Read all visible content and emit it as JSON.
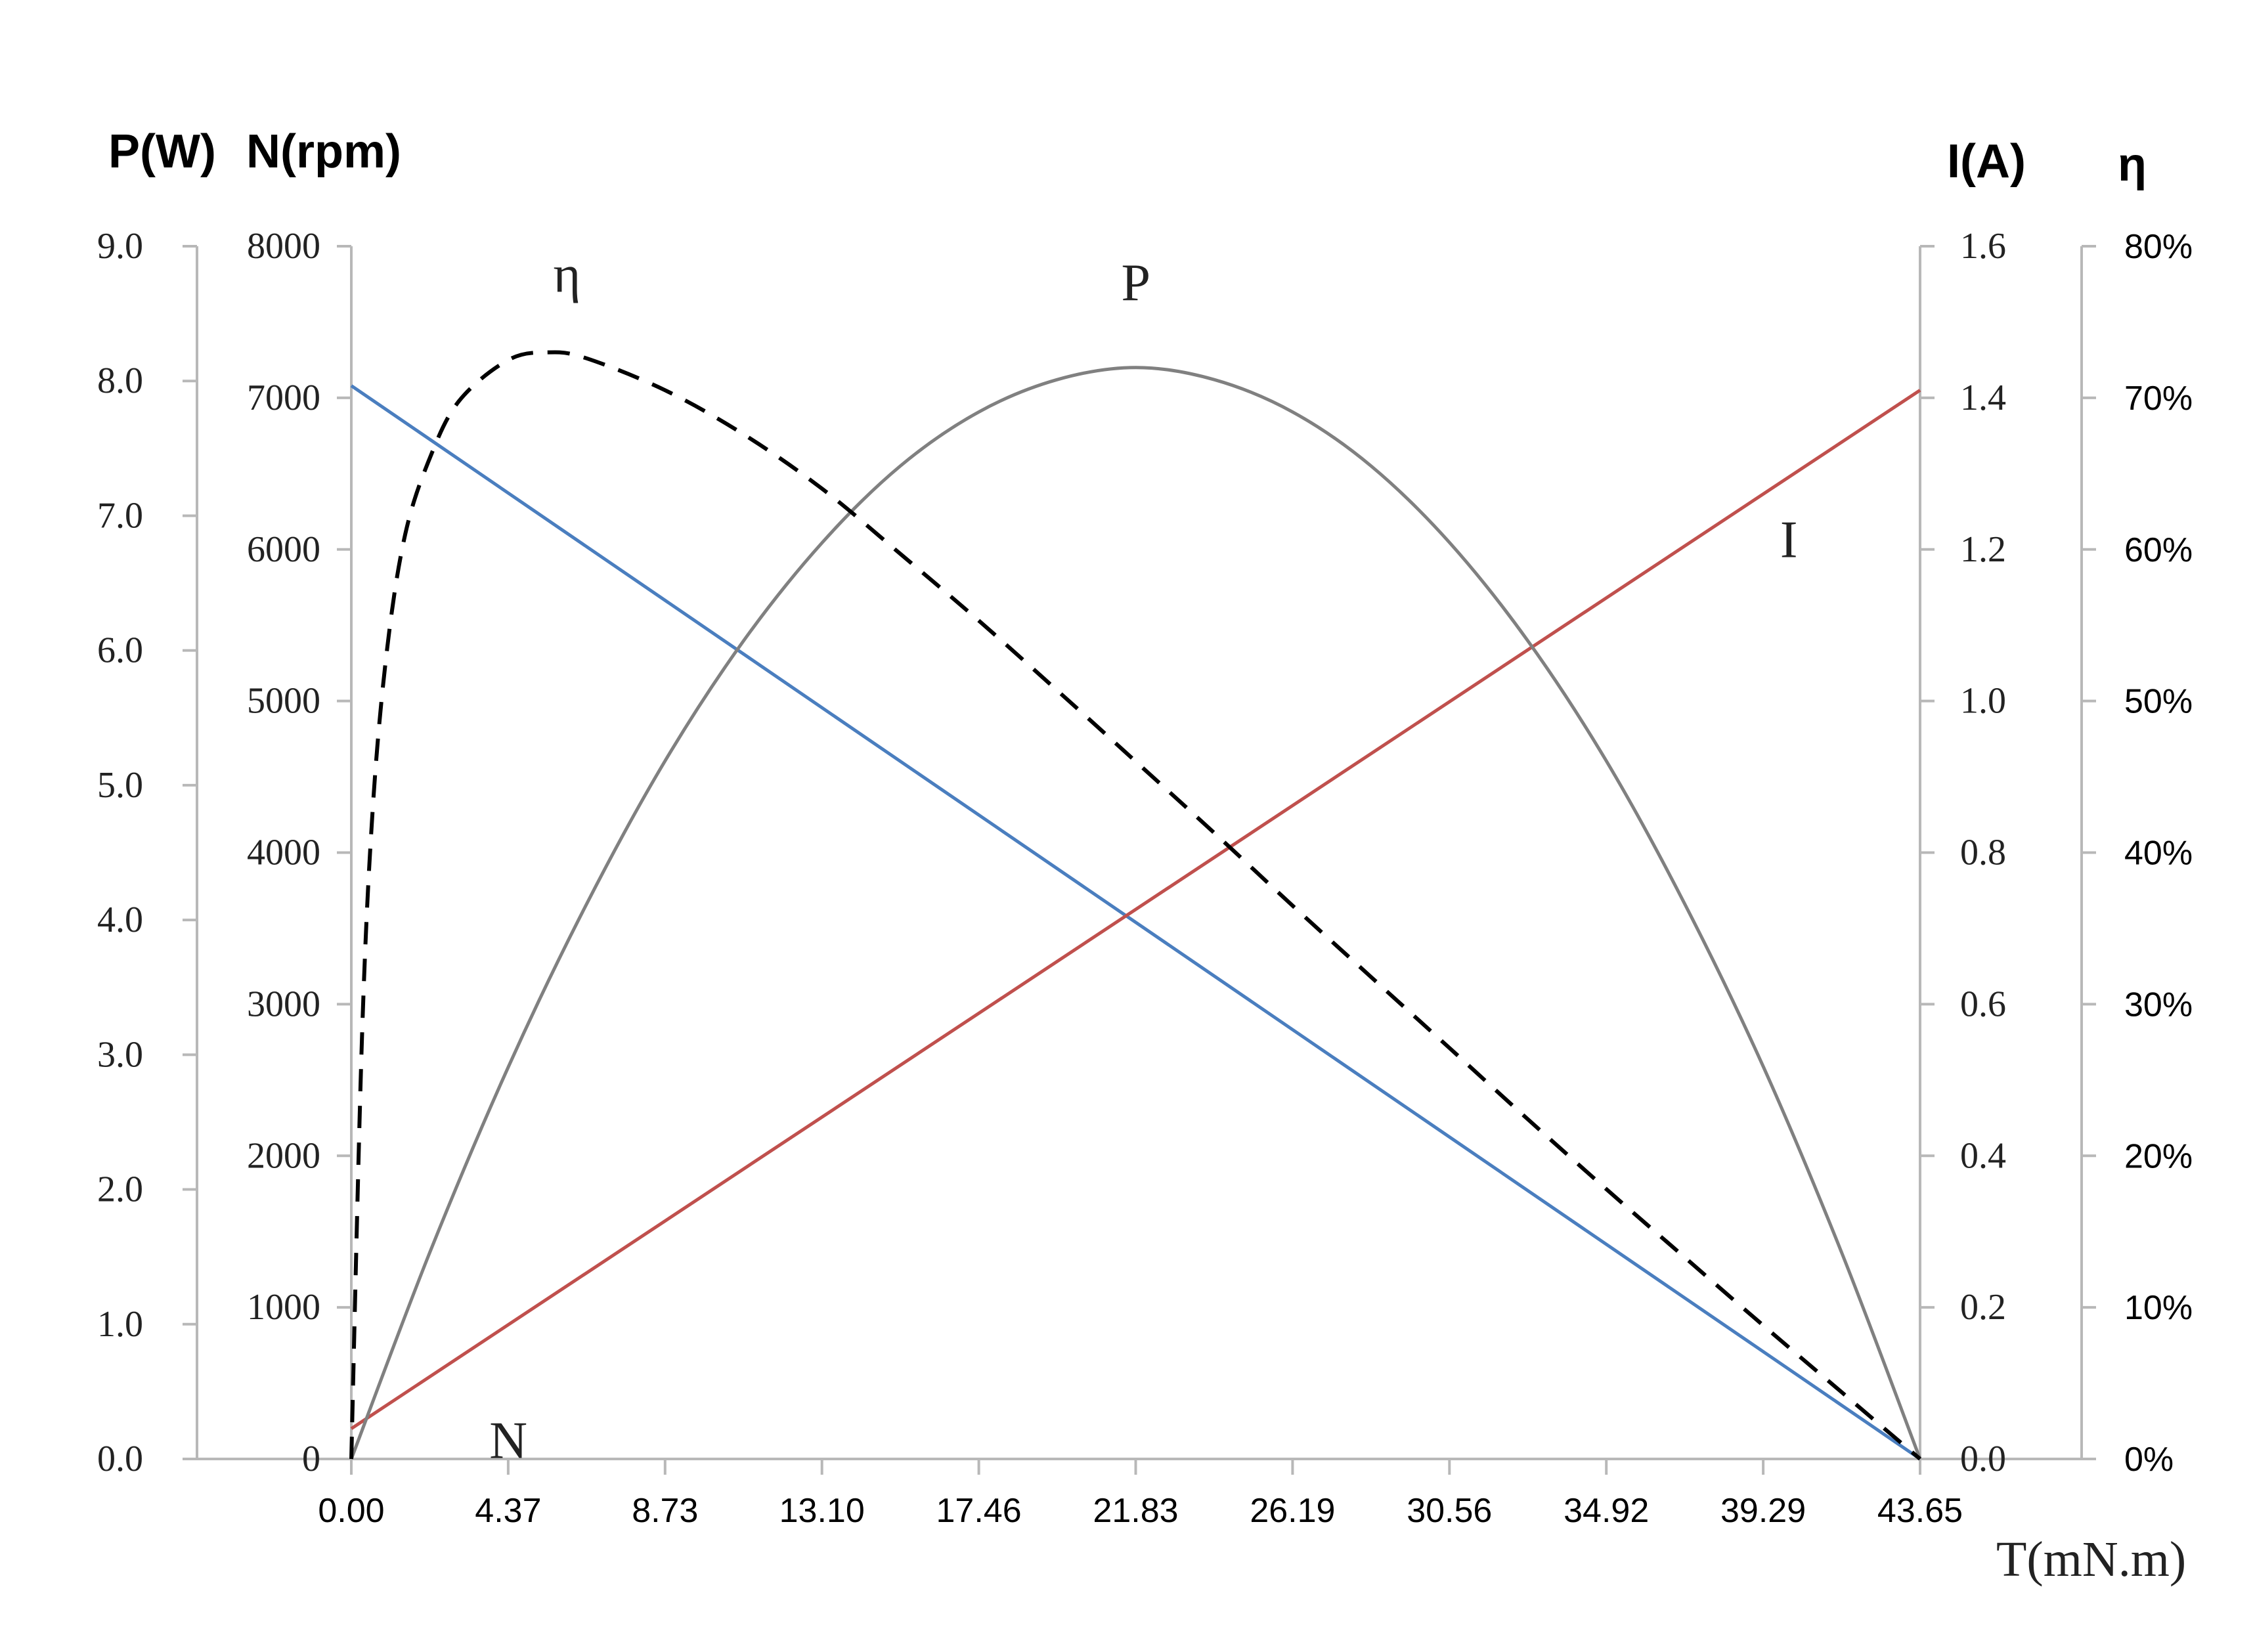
{
  "chart_data": {
    "type": "line",
    "axis_titles": {
      "left_outer": "P(W)",
      "left_inner": "N(rpm)",
      "right_inner": "I(A)",
      "right_outer": "η",
      "x": "T(mN.m)"
    },
    "x": {
      "min": 0,
      "max": 43.65,
      "ticks": [
        0,
        4.365,
        8.73,
        13.095,
        17.46,
        21.825,
        26.19,
        30.555,
        34.92,
        39.285,
        43.65
      ],
      "tick_labels": [
        "0.00",
        "4.37",
        "8.73",
        "13.10",
        "17.46",
        "21.83",
        "26.19",
        "30.56",
        "34.92",
        "39.29",
        "43.65"
      ]
    },
    "axes": {
      "P": {
        "min": 0,
        "max": 9,
        "tick_labels": [
          "0.0",
          "1.0",
          "2.0",
          "3.0",
          "4.0",
          "5.0",
          "6.0",
          "7.0",
          "8.0",
          "9.0"
        ]
      },
      "N": {
        "min": 0,
        "max": 8000,
        "tick_labels": [
          "0",
          "1000",
          "2000",
          "3000",
          "4000",
          "5000",
          "6000",
          "7000",
          "8000"
        ]
      },
      "I": {
        "min": 0,
        "max": 1.6,
        "tick_labels": [
          "0.0",
          "0.2",
          "0.4",
          "0.6",
          "0.8",
          "1.0",
          "1.2",
          "1.4",
          "1.6"
        ]
      },
      "eta": {
        "min": 0,
        "max": 0.8,
        "tick_labels": [
          "0%",
          "10%",
          "20%",
          "30%",
          "40%",
          "50%",
          "60%",
          "70%",
          "80%"
        ]
      }
    },
    "series": [
      {
        "name": "N",
        "axis": "N",
        "color": "#4a7ebf",
        "style": "solid",
        "points": [
          [
            0,
            7080
          ],
          [
            43.65,
            0
          ]
        ]
      },
      {
        "name": "I",
        "axis": "I",
        "color": "#c0504d",
        "style": "solid",
        "points": [
          [
            0,
            0.04
          ],
          [
            43.65,
            1.41
          ]
        ]
      },
      {
        "name": "P",
        "axis": "P",
        "color": "#808080",
        "style": "solid",
        "points": [
          [
            0,
            0
          ],
          [
            2.18,
            1.53
          ],
          [
            4.37,
            2.91
          ],
          [
            6.55,
            4.12
          ],
          [
            8.73,
            5.18
          ],
          [
            10.91,
            6.07
          ],
          [
            13.1,
            6.8
          ],
          [
            15.28,
            7.37
          ],
          [
            17.46,
            7.77
          ],
          [
            19.64,
            8.01
          ],
          [
            21.83,
            8.1
          ],
          [
            24.01,
            8.01
          ],
          [
            26.19,
            7.77
          ],
          [
            28.37,
            7.37
          ],
          [
            30.56,
            6.8
          ],
          [
            32.74,
            6.07
          ],
          [
            34.92,
            5.18
          ],
          [
            37.1,
            4.12
          ],
          [
            39.29,
            2.91
          ],
          [
            41.47,
            1.53
          ],
          [
            43.65,
            0
          ]
        ]
      },
      {
        "name": "η",
        "axis": "eta",
        "color": "#000000",
        "style": "dashed",
        "points": [
          [
            0,
            0
          ],
          [
            0.3,
            0.28
          ],
          [
            0.6,
            0.43
          ],
          [
            1.0,
            0.535
          ],
          [
            1.5,
            0.61
          ],
          [
            2.18,
            0.66
          ],
          [
            3.0,
            0.698
          ],
          [
            4.37,
            0.725
          ],
          [
            5.5,
            0.73
          ],
          [
            6.55,
            0.726
          ],
          [
            8.73,
            0.705
          ],
          [
            10.91,
            0.676
          ],
          [
            13.1,
            0.64
          ],
          [
            15.28,
            0.597
          ],
          [
            17.46,
            0.553
          ],
          [
            19.64,
            0.507
          ],
          [
            21.83,
            0.46
          ],
          [
            24.01,
            0.413
          ],
          [
            26.19,
            0.365
          ],
          [
            28.37,
            0.318
          ],
          [
            30.56,
            0.271
          ],
          [
            32.74,
            0.224
          ],
          [
            34.92,
            0.178
          ],
          [
            37.1,
            0.133
          ],
          [
            39.29,
            0.088
          ],
          [
            41.47,
            0.044
          ],
          [
            43.65,
            0
          ]
        ]
      }
    ],
    "curve_labels": [
      {
        "text": "η",
        "series": "η",
        "anchor_x": 6.0,
        "anchor_y": 0.77
      },
      {
        "text": "P",
        "series": "P",
        "anchor_x": 21.83,
        "anchor_y": 8.6
      },
      {
        "text": "N",
        "series": "N",
        "anchor_x": 4.37,
        "anchor_y": 5.7
      },
      {
        "text": "I",
        "series": "I",
        "anchor_x": 40.0,
        "anchor_y": 1.19
      }
    ],
    "grid": false
  }
}
